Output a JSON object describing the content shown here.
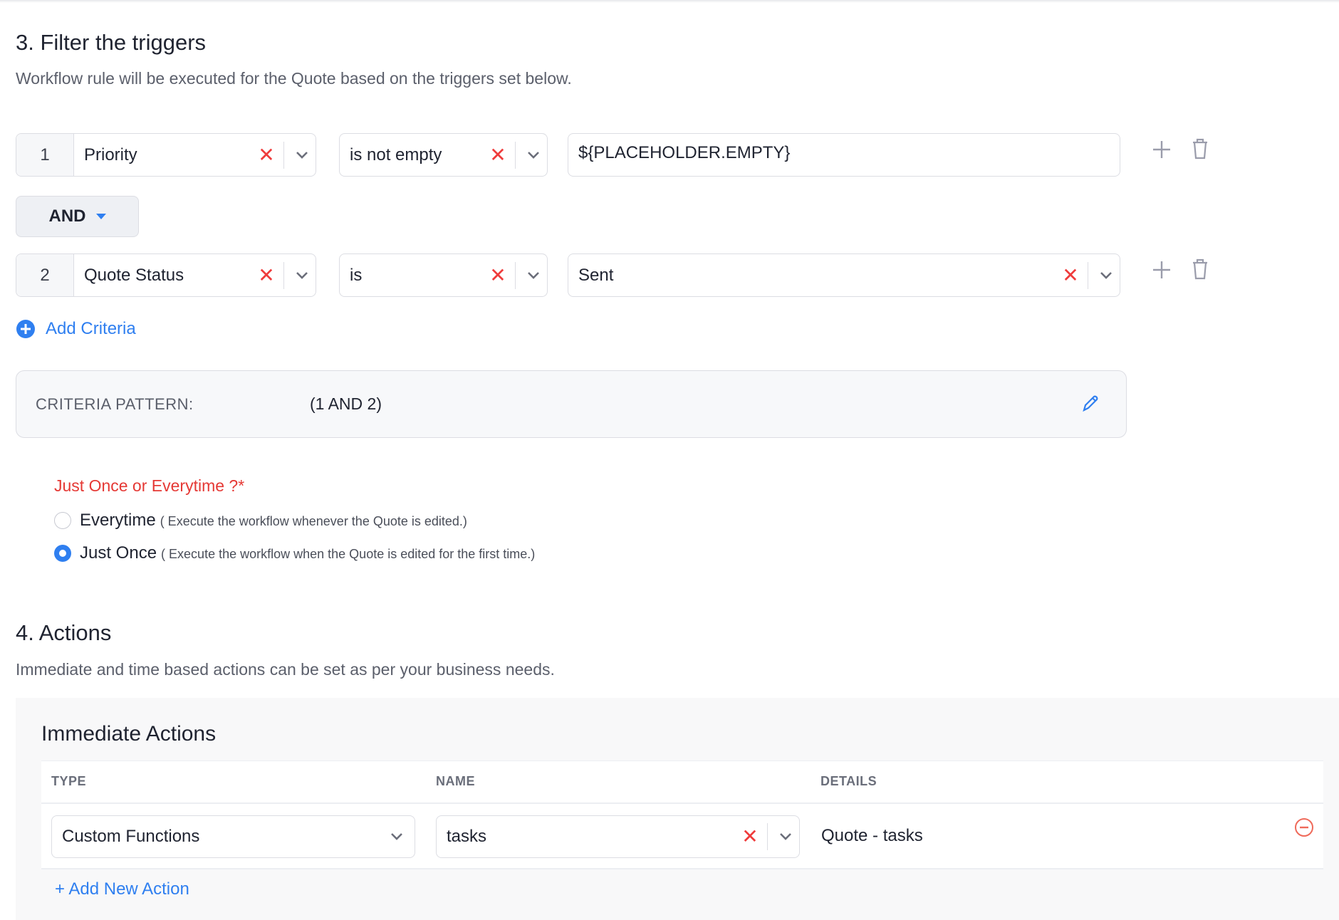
{
  "filter": {
    "title": "3. Filter the triggers",
    "subtitle": "Workflow rule will be executed for the Quote based on the triggers set below.",
    "criteria": [
      {
        "number": "1",
        "field": "Priority",
        "operator": "is not empty",
        "value": "${PLACEHOLDER.EMPTY}",
        "value_is_select": false
      },
      {
        "number": "2",
        "field": "Quote Status",
        "operator": "is",
        "value": "Sent",
        "value_is_select": true
      }
    ],
    "connector": "AND",
    "add_criteria": "Add Criteria",
    "pattern_label": "CRITERIA PATTERN:",
    "pattern_value": "(1 AND 2)",
    "frequency": {
      "label": "Just Once or Everytime ?*",
      "options": [
        {
          "label": "Everytime",
          "hint": "( Execute the workflow whenever the Quote is edited.)",
          "selected": false
        },
        {
          "label": "Just Once",
          "hint": "( Execute the workflow when the Quote is edited for the first time.)",
          "selected": true
        }
      ]
    }
  },
  "actions": {
    "title": "4. Actions",
    "subtitle": "Immediate and time based actions can be set as per your business needs.",
    "immediate_title": "Immediate Actions",
    "columns": [
      "TYPE",
      "NAME",
      "DETAILS"
    ],
    "rows": [
      {
        "type": "Custom Functions",
        "name": "tasks",
        "details": "Quote - tasks"
      }
    ],
    "add_new": "+ Add New Action"
  },
  "colors": {
    "accent": "#2f7ff0",
    "danger": "#ef3b3b",
    "required_label": "#e53935"
  }
}
